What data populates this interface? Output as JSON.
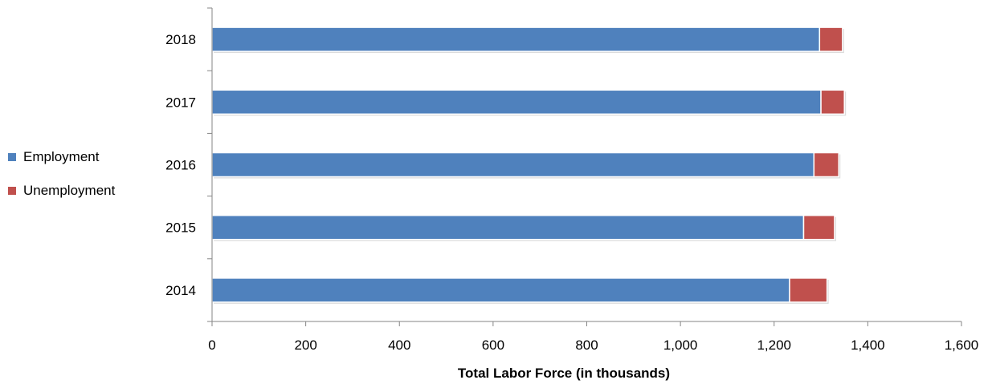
{
  "chart_data": {
    "type": "bar",
    "orientation": "horizontal",
    "stacked": true,
    "categories": [
      "2018",
      "2017",
      "2016",
      "2015",
      "2014"
    ],
    "series": [
      {
        "name": "Employment",
        "color": "#4F81BD",
        "values": [
          1297,
          1300,
          1285,
          1263,
          1233
        ]
      },
      {
        "name": "Unemployment",
        "color": "#C0504D",
        "values": [
          49,
          50,
          53,
          66,
          80
        ]
      }
    ],
    "title": "",
    "xlabel": "Total Labor Force (in thousands)",
    "ylabel": "",
    "xlim": [
      0,
      1600
    ],
    "xticks": [
      0,
      200,
      400,
      600,
      800,
      1000,
      1200,
      1400,
      1600
    ],
    "xtick_labels": [
      "0",
      "200",
      "400",
      "600",
      "800",
      "1,000",
      "1,200",
      "1,400",
      "1,600"
    ],
    "grid": false,
    "legend_position": "left"
  }
}
